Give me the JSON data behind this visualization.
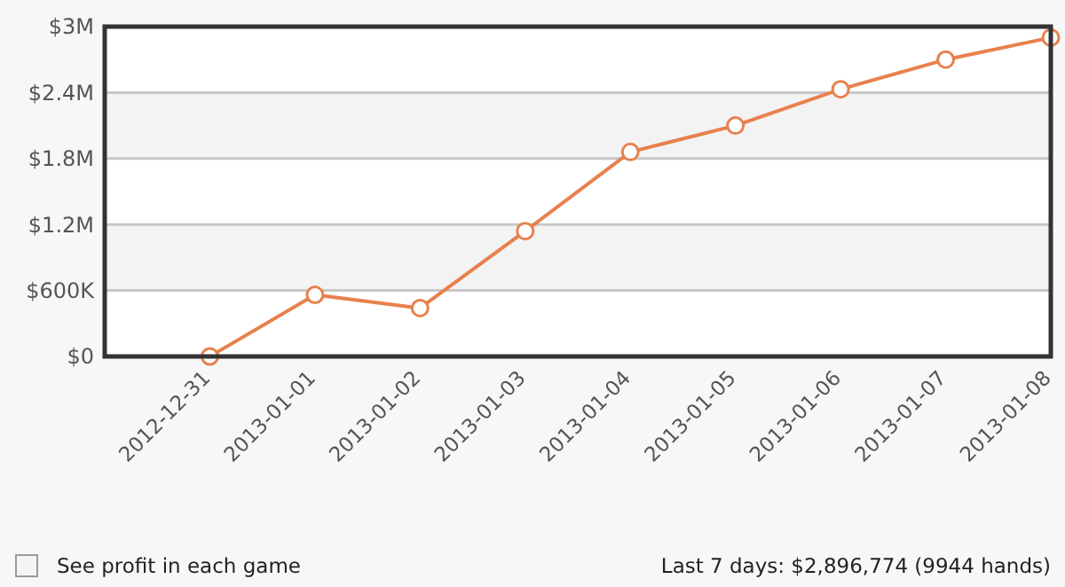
{
  "chart_data": {
    "type": "line",
    "x": [
      "2012-12-31",
      "2013-01-01",
      "2013-01-02",
      "2013-01-03",
      "2013-01-04",
      "2013-01-05",
      "2013-01-06",
      "2013-01-07",
      "2013-01-08"
    ],
    "series": [
      {
        "color": "#e8814d",
        "values": [
          0,
          560000,
          440000,
          1140000,
          1860000,
          2100000,
          2430000,
          2700000,
          2900000
        ]
      }
    ],
    "xlim": [
      "2012-12-30",
      "2013-01-08"
    ],
    "xticks": [
      "2012-12-31",
      "2013-01-01",
      "2013-01-02",
      "2013-01-03",
      "2013-01-04",
      "2013-01-05",
      "2013-01-06",
      "2013-01-07",
      "2013-01-08"
    ],
    "ylim": [
      0,
      3000000
    ],
    "yticks": [
      {
        "value": 0,
        "label": "$0"
      },
      {
        "value": 600000,
        "label": "$600K"
      },
      {
        "value": 1200000,
        "label": "$1.2M"
      },
      {
        "value": 1800000,
        "label": "$1.8M"
      },
      {
        "value": 2400000,
        "label": "$2.4M"
      },
      {
        "value": 3000000,
        "label": "$3M"
      }
    ],
    "grid": "y",
    "marker": "circle",
    "line_style": "solid",
    "annotations": [
      "See profit in each game",
      "Last 7 days: $2,896,774 (9944 hands)"
    ]
  }
}
